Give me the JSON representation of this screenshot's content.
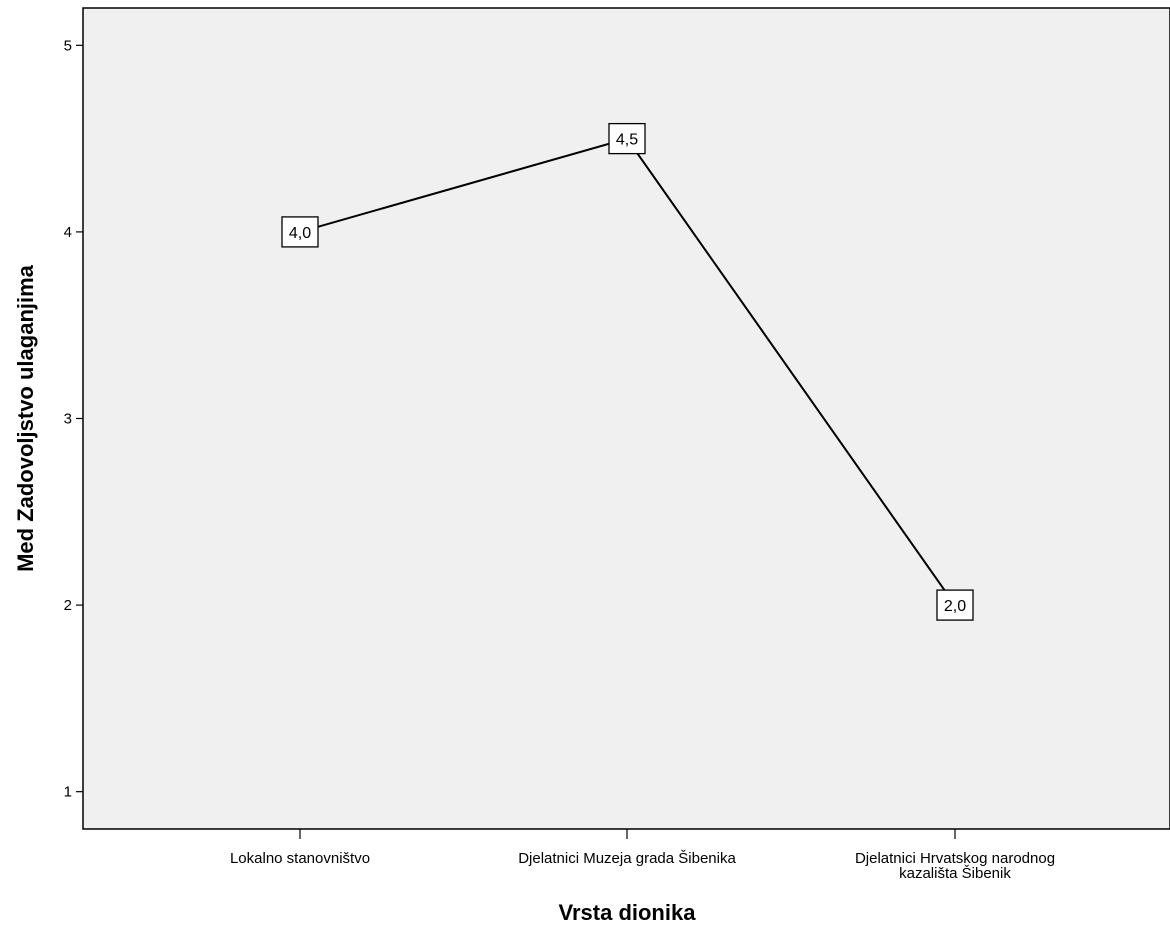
{
  "chart_data": {
    "type": "line",
    "title": "",
    "xlabel": "Vrsta dionika",
    "ylabel": "Med Zadovoljstvo ulaganjima",
    "categories": [
      [
        "Lokalno stanovništvo"
      ],
      [
        "Djelatnici Muzeja grada Šibenika"
      ],
      [
        "Djelatnici Hrvatskog narodnog",
        "kazališta Šibenik"
      ]
    ],
    "series": [
      {
        "values": [
          4.0,
          4.5,
          2.0
        ],
        "data_labels": [
          "4,0",
          "4,5",
          "2,0"
        ]
      }
    ],
    "ylim": [
      0.8,
      5.2
    ],
    "yticks": [
      1,
      2,
      3,
      4,
      5
    ],
    "ytick_labels": [
      "1",
      "2",
      "3",
      "4",
      "5"
    ],
    "grid": false,
    "legend": "none",
    "colors": {
      "plot_background": "#f0f0f0",
      "line": "#000000",
      "frame": "#000000",
      "label_box": "#ffffff"
    }
  }
}
